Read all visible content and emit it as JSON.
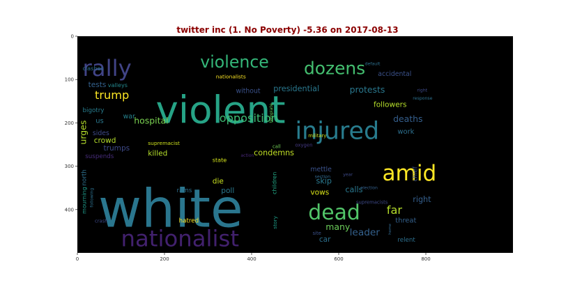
{
  "chart_data": {
    "type": "wordcloud",
    "title": "twitter inc (1. No Poverty) -5.36 on 2017-08-13",
    "title_color": "#8b0000",
    "background": "#000000",
    "xlim": [
      0,
      1000
    ],
    "ylim": [
      0,
      500
    ],
    "x_ticks": [
      0,
      200,
      400,
      600,
      800
    ],
    "y_ticks": [
      0,
      100,
      200,
      300,
      400
    ],
    "words": [
      {
        "text": "violent",
        "x": 180,
        "y": 200,
        "size": 88,
        "color": "#26a386",
        "rotate": 0
      },
      {
        "text": "white",
        "x": 48,
        "y": 440,
        "size": 122,
        "color": "#2a768e",
        "rotate": 0
      },
      {
        "text": "nationalist",
        "x": 100,
        "y": 485,
        "size": 52,
        "color": "#42216e",
        "rotate": 0
      },
      {
        "text": "violence",
        "x": 282,
        "y": 72,
        "size": 38,
        "color": "#34b679",
        "rotate": 0
      },
      {
        "text": "dozens",
        "x": 520,
        "y": 88,
        "size": 40,
        "color": "#44bf70",
        "rotate": 0
      },
      {
        "text": "rally",
        "x": 12,
        "y": 92,
        "size": 52,
        "color": "#414487",
        "rotate": 0
      },
      {
        "text": "injured",
        "x": 500,
        "y": 237,
        "size": 56,
        "color": "#287c8e",
        "rotate": 0
      },
      {
        "text": "amid",
        "x": 700,
        "y": 333,
        "size": 50,
        "color": "#fde725",
        "rotate": 0
      },
      {
        "text": "dead",
        "x": 530,
        "y": 423,
        "size": 48,
        "color": "#52c569",
        "rotate": 0
      },
      {
        "text": "opposition",
        "x": 326,
        "y": 198,
        "size": 26,
        "color": "#3dbc74",
        "rotate": 0
      },
      {
        "text": "hospital",
        "x": 130,
        "y": 202,
        "size": 20,
        "color": "#7ad151",
        "rotate": 0
      },
      {
        "text": "trump",
        "x": 40,
        "y": 145,
        "size": 26,
        "color": "#fde725",
        "rotate": 0
      },
      {
        "text": "presidential",
        "x": 450,
        "y": 127,
        "size": 18,
        "color": "#2a788e",
        "rotate": 0
      },
      {
        "text": "protests",
        "x": 625,
        "y": 130,
        "size": 20,
        "color": "#2a788e",
        "rotate": 0
      },
      {
        "text": "accidental",
        "x": 690,
        "y": 92,
        "size": 15,
        "color": "#3b528b",
        "rotate": 0
      },
      {
        "text": "followers",
        "x": 680,
        "y": 163,
        "size": 17,
        "color": "#b5de2b",
        "rotate": 0
      },
      {
        "text": "deaths",
        "x": 725,
        "y": 198,
        "size": 20,
        "color": "#355f8d",
        "rotate": 0
      },
      {
        "text": "work",
        "x": 735,
        "y": 225,
        "size": 16,
        "color": "#2d708e",
        "rotate": 0
      },
      {
        "text": "condemns",
        "x": 405,
        "y": 275,
        "size": 18,
        "color": "#c0df25",
        "rotate": 0
      },
      {
        "text": "tests",
        "x": 25,
        "y": 117,
        "size": 17,
        "color": "#34618d",
        "rotate": 0
      },
      {
        "text": "valleys",
        "x": 70,
        "y": 117,
        "size": 13,
        "color": "#24878e",
        "rotate": 0
      },
      {
        "text": "clashes",
        "x": 12,
        "y": 79,
        "size": 13,
        "color": "#2d708e",
        "rotate": 0
      },
      {
        "text": "bigotry",
        "x": 12,
        "y": 175,
        "size": 14,
        "color": "#287c8e",
        "rotate": 0
      },
      {
        "text": "us",
        "x": 42,
        "y": 200,
        "size": 16,
        "color": "#2a788e",
        "rotate": 0
      },
      {
        "text": "war",
        "x": 105,
        "y": 190,
        "size": 15,
        "color": "#26828e",
        "rotate": 0
      },
      {
        "text": "sides",
        "x": 35,
        "y": 228,
        "size": 15,
        "color": "#3e4a89",
        "rotate": 0
      },
      {
        "text": "crowd",
        "x": 38,
        "y": 246,
        "size": 17,
        "color": "#b5de2b",
        "rotate": 0
      },
      {
        "text": "trumps",
        "x": 60,
        "y": 264,
        "size": 17,
        "color": "#3e4a89",
        "rotate": 0
      },
      {
        "text": "suspends",
        "x": 18,
        "y": 281,
        "size": 14,
        "color": "#472d7b",
        "rotate": 0
      },
      {
        "text": "killed",
        "x": 162,
        "y": 276,
        "size": 17,
        "color": "#b5de2b",
        "rotate": 0
      },
      {
        "text": "supremacist",
        "x": 162,
        "y": 251,
        "size": 12,
        "color": "#cde11d",
        "rotate": 0
      },
      {
        "text": "nationalists",
        "x": 318,
        "y": 97,
        "size": 12,
        "color": "#fde725",
        "rotate": 0
      },
      {
        "text": "without",
        "x": 364,
        "y": 131,
        "size": 15,
        "color": "#3b528b",
        "rotate": 0
      },
      {
        "text": "state",
        "x": 310,
        "y": 290,
        "size": 13,
        "color": "#d2e21b",
        "rotate": 0
      },
      {
        "text": "action",
        "x": 375,
        "y": 278,
        "size": 10,
        "color": "#482878",
        "rotate": 0
      },
      {
        "text": "call",
        "x": 448,
        "y": 258,
        "size": 11,
        "color": "#73d056",
        "rotate": 0
      },
      {
        "text": "oxygen",
        "x": 500,
        "y": 255,
        "size": 11,
        "color": "#443983",
        "rotate": 0
      },
      {
        "text": "military",
        "x": 530,
        "y": 233,
        "size": 11,
        "color": "#cde11d",
        "rotate": 0
      },
      {
        "text": "template",
        "x": 448,
        "y": 200,
        "size": 10,
        "color": "#6ccd5a",
        "rotate": -90
      },
      {
        "text": "urges",
        "x": 20,
        "y": 250,
        "size": 20,
        "color": "#b5de2b",
        "rotate": -90
      },
      {
        "text": "north",
        "x": 20,
        "y": 345,
        "size": 14,
        "color": "#2d708e",
        "rotate": -90
      },
      {
        "text": "mourning",
        "x": 20,
        "y": 410,
        "size": 13,
        "color": "#1f9a8a",
        "rotate": -90
      },
      {
        "text": "following",
        "x": 36,
        "y": 395,
        "size": 10,
        "color": "#2d708e",
        "rotate": -90
      },
      {
        "text": "rams",
        "x": 228,
        "y": 360,
        "size": 14,
        "color": "#2d708e",
        "rotate": 0
      },
      {
        "text": "die",
        "x": 310,
        "y": 340,
        "size": 17,
        "color": "#c8e020",
        "rotate": 0
      },
      {
        "text": "poll",
        "x": 330,
        "y": 362,
        "size": 17,
        "color": "#2a788e",
        "rotate": 0
      },
      {
        "text": "hatred",
        "x": 233,
        "y": 430,
        "size": 14,
        "color": "#fde725",
        "rotate": 0
      },
      {
        "text": "crash",
        "x": 40,
        "y": 430,
        "size": 11,
        "color": "#3e4a89",
        "rotate": 0
      },
      {
        "text": "children",
        "x": 457,
        "y": 365,
        "size": 13,
        "color": "#22a785",
        "rotate": -90
      },
      {
        "text": "story",
        "x": 458,
        "y": 445,
        "size": 12,
        "color": "#1f9e89",
        "rotate": -90
      },
      {
        "text": "mettle",
        "x": 535,
        "y": 312,
        "size": 15,
        "color": "#3b528b",
        "rotate": 0
      },
      {
        "text": "skip",
        "x": 548,
        "y": 340,
        "size": 18,
        "color": "#2a788e",
        "rotate": 0
      },
      {
        "text": "vows",
        "x": 535,
        "y": 366,
        "size": 17,
        "color": "#d8e219",
        "rotate": 0
      },
      {
        "text": "section",
        "x": 545,
        "y": 327,
        "size": 10,
        "color": "#31688e",
        "rotate": 0
      },
      {
        "text": "year",
        "x": 610,
        "y": 322,
        "size": 10,
        "color": "#3e4a89",
        "rotate": 0
      },
      {
        "text": "calls",
        "x": 615,
        "y": 360,
        "size": 18,
        "color": "#2a788e",
        "rotate": 0
      },
      {
        "text": "election",
        "x": 650,
        "y": 353,
        "size": 10,
        "color": "#34618d",
        "rotate": 0
      },
      {
        "text": "supremacists",
        "x": 640,
        "y": 387,
        "size": 11,
        "color": "#3e4a89",
        "rotate": 0
      },
      {
        "text": "chief",
        "x": 780,
        "y": 335,
        "size": 14,
        "color": "#3b528b",
        "rotate": -90
      },
      {
        "text": "right",
        "x": 770,
        "y": 383,
        "size": 18,
        "color": "#355f8d",
        "rotate": 0
      },
      {
        "text": "far",
        "x": 710,
        "y": 410,
        "size": 26,
        "color": "#b5de2b",
        "rotate": 0
      },
      {
        "text": "threat",
        "x": 730,
        "y": 430,
        "size": 16,
        "color": "#34618d",
        "rotate": 0
      },
      {
        "text": "home",
        "x": 720,
        "y": 458,
        "size": 9,
        "color": "#31688e",
        "rotate": -90
      },
      {
        "text": "relent",
        "x": 735,
        "y": 474,
        "size": 14,
        "color": "#2d708e",
        "rotate": 0
      },
      {
        "text": "many",
        "x": 570,
        "y": 447,
        "size": 20,
        "color": "#6ccd5a",
        "rotate": 0
      },
      {
        "text": "leader",
        "x": 625,
        "y": 460,
        "size": 22,
        "color": "#34618d",
        "rotate": 0
      },
      {
        "text": "car",
        "x": 555,
        "y": 474,
        "size": 17,
        "color": "#2d708e",
        "rotate": 0
      },
      {
        "text": "site",
        "x": 540,
        "y": 458,
        "size": 11,
        "color": "#3b528b",
        "rotate": 0
      },
      {
        "text": "default",
        "x": 660,
        "y": 67,
        "size": 10,
        "color": "#2d708e",
        "rotate": 0
      },
      {
        "text": "response",
        "x": 770,
        "y": 146,
        "size": 10,
        "color": "#2d708e",
        "rotate": 0
      },
      {
        "text": "right",
        "x": 780,
        "y": 128,
        "size": 10,
        "color": "#3e4a89",
        "rotate": 0
      }
    ]
  }
}
